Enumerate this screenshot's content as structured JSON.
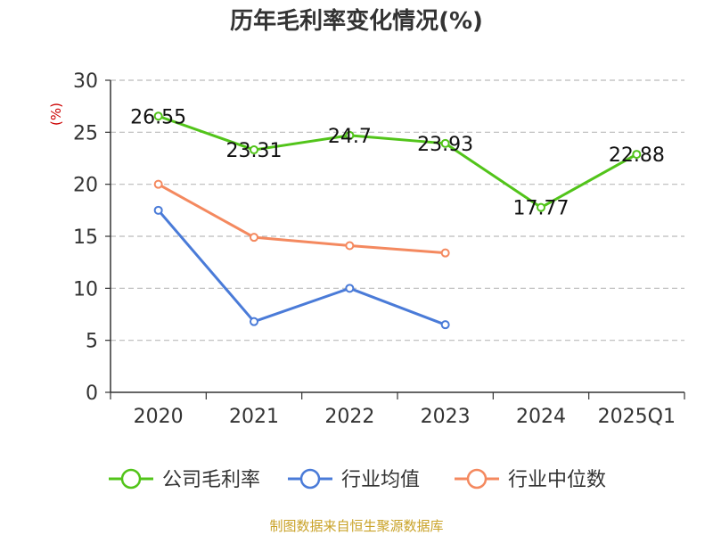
{
  "chart_data": {
    "type": "line",
    "title": "历年毛利率变化情况(%)",
    "ylabel": "(%)",
    "categories": [
      "2020",
      "2021",
      "2022",
      "2023",
      "2024",
      "2025Q1"
    ],
    "ylim": [
      0,
      30
    ],
    "yticks": [
      0,
      5,
      10,
      15,
      20,
      25,
      30
    ],
    "grid": true,
    "legend_position": "bottom",
    "series": [
      {
        "name": "公司毛利率",
        "color": "#52c41a",
        "values": [
          26.55,
          23.31,
          24.7,
          23.93,
          17.77,
          22.88
        ],
        "labels": [
          "26.55",
          "23.31",
          "24.7",
          "23.93",
          "17.77",
          "22.88"
        ]
      },
      {
        "name": "行业均值",
        "color": "#4a7bd8",
        "values": [
          17.5,
          6.8,
          10.0,
          6.5,
          null,
          null
        ]
      },
      {
        "name": "行业中位数",
        "color": "#f4895f",
        "values": [
          20.0,
          14.9,
          14.1,
          13.4,
          null,
          null
        ]
      }
    ]
  },
  "source": "制图数据来自恒生聚源数据库"
}
